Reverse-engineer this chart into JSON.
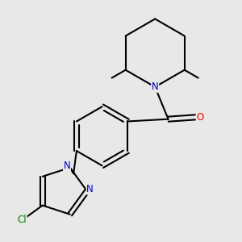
{
  "bg_color": "#e8e8e8",
  "bond_color": "#000000",
  "bond_width": 1.5,
  "atom_colors": {
    "N": "#0000cc",
    "O": "#ff0000",
    "Cl": "#008000",
    "C": "#000000"
  },
  "font_size_atom": 8.5
}
